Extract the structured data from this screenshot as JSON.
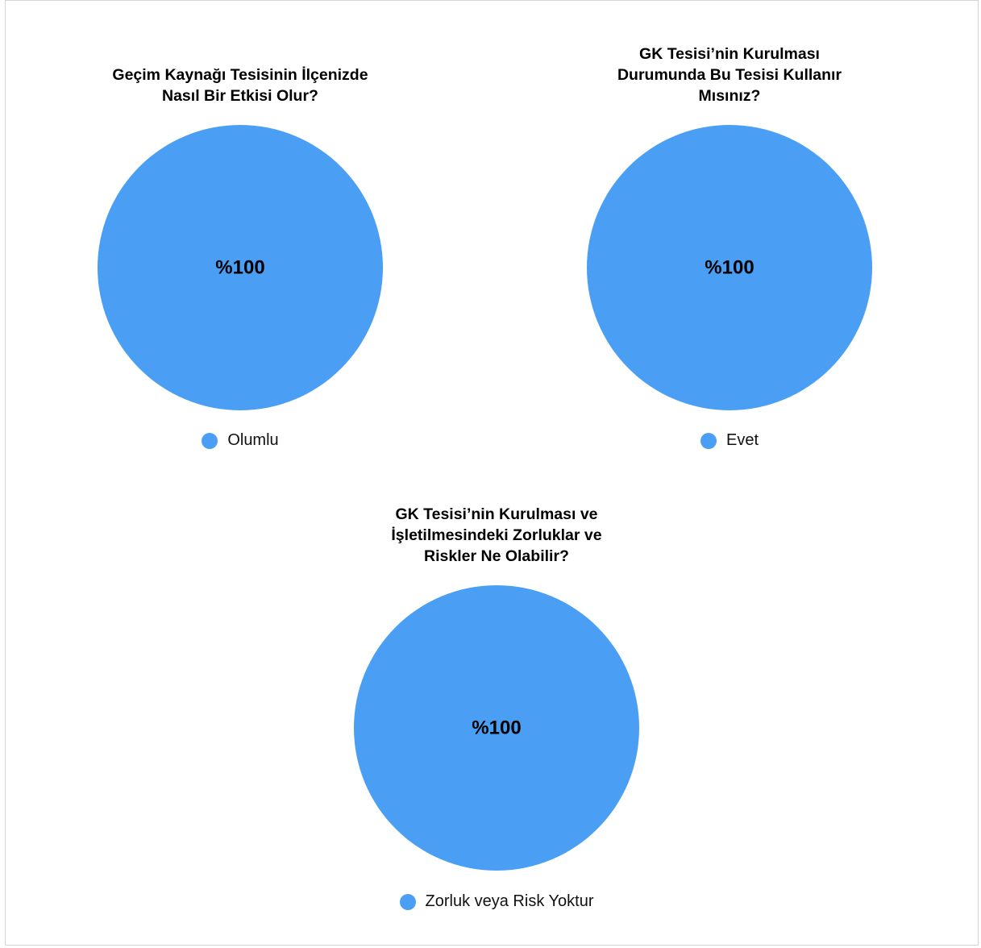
{
  "colors": {
    "slice": "#4a9ff5",
    "label": "#000000"
  },
  "chart_data": [
    {
      "type": "pie",
      "title": "Geçim Kaynağı Tesisinin İlçenizde\nNasıl Bir Etkisi Olur?",
      "slices": [
        {
          "label": "Olumlu",
          "value": 100,
          "display": "%100"
        }
      ],
      "legend": "bottom"
    },
    {
      "type": "pie",
      "title": "GK Tesisi’nin Kurulması\nDurumunda Bu Tesisi Kullanır\nMısınız?",
      "slices": [
        {
          "label": "Evet",
          "value": 100,
          "display": "%100"
        }
      ],
      "legend": "bottom"
    },
    {
      "type": "pie",
      "title": "GK Tesisi’nin Kurulması ve\nİşletilmesindeki Zorluklar ve\nRiskler Ne Olabilir?",
      "slices": [
        {
          "label": "Zorluk veya Risk Yoktur",
          "value": 100,
          "display": "%100"
        }
      ],
      "legend": "bottom"
    }
  ]
}
